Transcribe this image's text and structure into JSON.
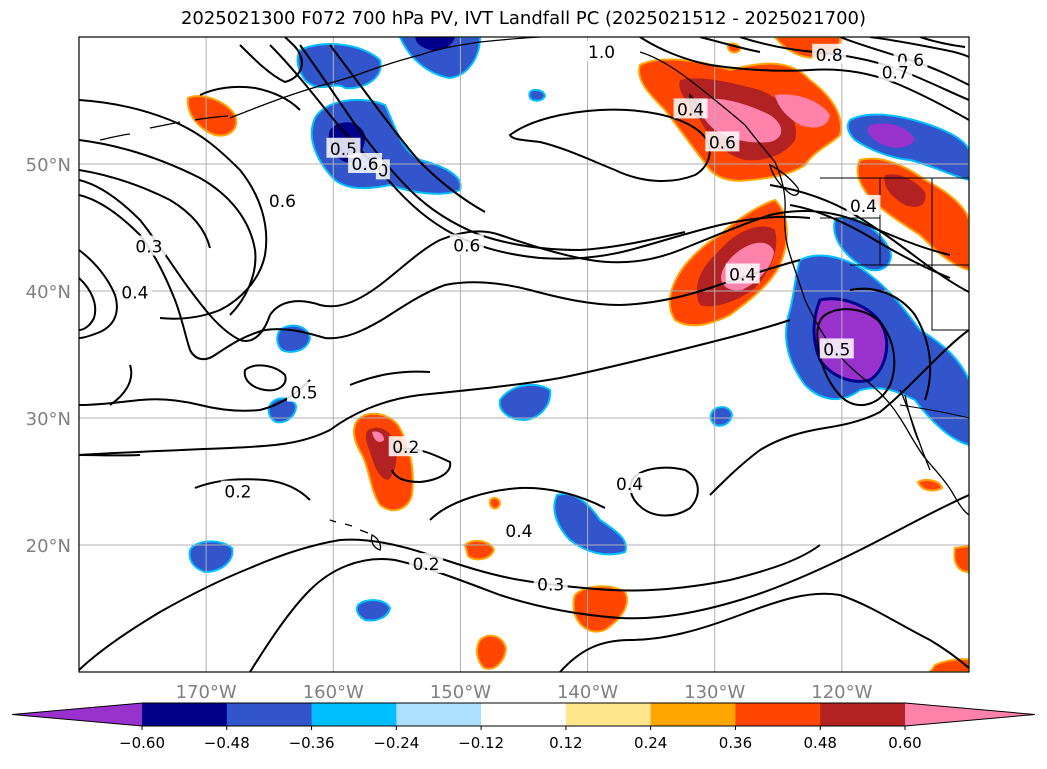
{
  "title": "2025021300 F072 700 hPa PV, IVT Landfall PC (2025021512 - 2025021700)",
  "map": {
    "lon_range": [
      -180,
      -110
    ],
    "lat_range": [
      10,
      60
    ],
    "lat_ticks": [
      {
        "lat": 20,
        "label": "20°N"
      },
      {
        "lat": 30,
        "label": "30°N"
      },
      {
        "lat": 40,
        "label": "40°N"
      },
      {
        "lat": 50,
        "label": "50°N"
      }
    ],
    "lon_ticks": [
      {
        "lon": -170,
        "label": "170°W"
      },
      {
        "lon": -160,
        "label": "160°W"
      },
      {
        "lon": -150,
        "label": "150°W"
      },
      {
        "lon": -140,
        "label": "140°W"
      },
      {
        "lon": -130,
        "label": "130°W"
      },
      {
        "lon": -120,
        "label": "120°W"
      }
    ],
    "gridlines": true,
    "contour_labels": [
      {
        "text": "1.0",
        "lon": -138.9,
        "lat": 58.8
      },
      {
        "text": "0.8",
        "lon": -121.0,
        "lat": 58.6
      },
      {
        "text": "0.6",
        "lon": -114.6,
        "lat": 58.2
      },
      {
        "text": "0.7",
        "lon": -115.8,
        "lat": 57.2
      },
      {
        "text": "0.4",
        "lon": -131.9,
        "lat": 54.3
      },
      {
        "text": "0.6",
        "lon": -129.4,
        "lat": 51.7
      },
      {
        "text": "0.5",
        "lon": -159.2,
        "lat": 51.2
      },
      {
        "text": "0",
        "lon": -156.1,
        "lat": 49.5
      },
      {
        "text": "0.6",
        "lon": -157.5,
        "lat": 50.0
      },
      {
        "text": "0.6",
        "lon": -164.0,
        "lat": 47.1
      },
      {
        "text": "0.4",
        "lon": -118.3,
        "lat": 46.7
      },
      {
        "text": "0.6",
        "lon": -149.5,
        "lat": 43.6
      },
      {
        "text": "0.3",
        "lon": -174.5,
        "lat": 43.5
      },
      {
        "text": "0.4",
        "lon": -127.8,
        "lat": 41.3
      },
      {
        "text": "0.4",
        "lon": -175.6,
        "lat": 39.9
      },
      {
        "text": "0.5",
        "lon": -120.4,
        "lat": 35.4
      },
      {
        "text": "0.5",
        "lon": -162.3,
        "lat": 32.0
      },
      {
        "text": "0.2",
        "lon": -154.3,
        "lat": 27.7
      },
      {
        "text": "0.4",
        "lon": -136.7,
        "lat": 24.8
      },
      {
        "text": "0.2",
        "lon": -167.5,
        "lat": 24.2
      },
      {
        "text": "0.4",
        "lon": -145.4,
        "lat": 21.1
      },
      {
        "text": "0.2",
        "lon": -152.7,
        "lat": 18.5
      },
      {
        "text": "0.3",
        "lon": -142.9,
        "lat": 16.9
      }
    ]
  },
  "colorbar": {
    "tick_labels": [
      "−0.60",
      "−0.48",
      "−0.36",
      "−0.24",
      "−0.12",
      "0.12",
      "0.24",
      "0.36",
      "0.48",
      "0.60"
    ],
    "colors": [
      "#9932CC",
      "#00008B",
      "#3355CC",
      "#00BFFF",
      "#ADDFFF",
      "#FFFFFF",
      "#FFE68C",
      "#FFA500",
      "#FF4500",
      "#B22222",
      "#FF82AB"
    ]
  },
  "legend_colors": {
    "neg_deep": "#9932CC",
    "neg_strong": "#00008B",
    "neg_mid": "#3355CC",
    "neg_light": "#00BFFF",
    "neg_pale": "#ADDFFF",
    "pos_pale": "#FFE68C",
    "pos_light": "#FFA500",
    "pos_mid": "#FF4500",
    "pos_strong": "#B22222",
    "pos_deep": "#FF82AB"
  }
}
